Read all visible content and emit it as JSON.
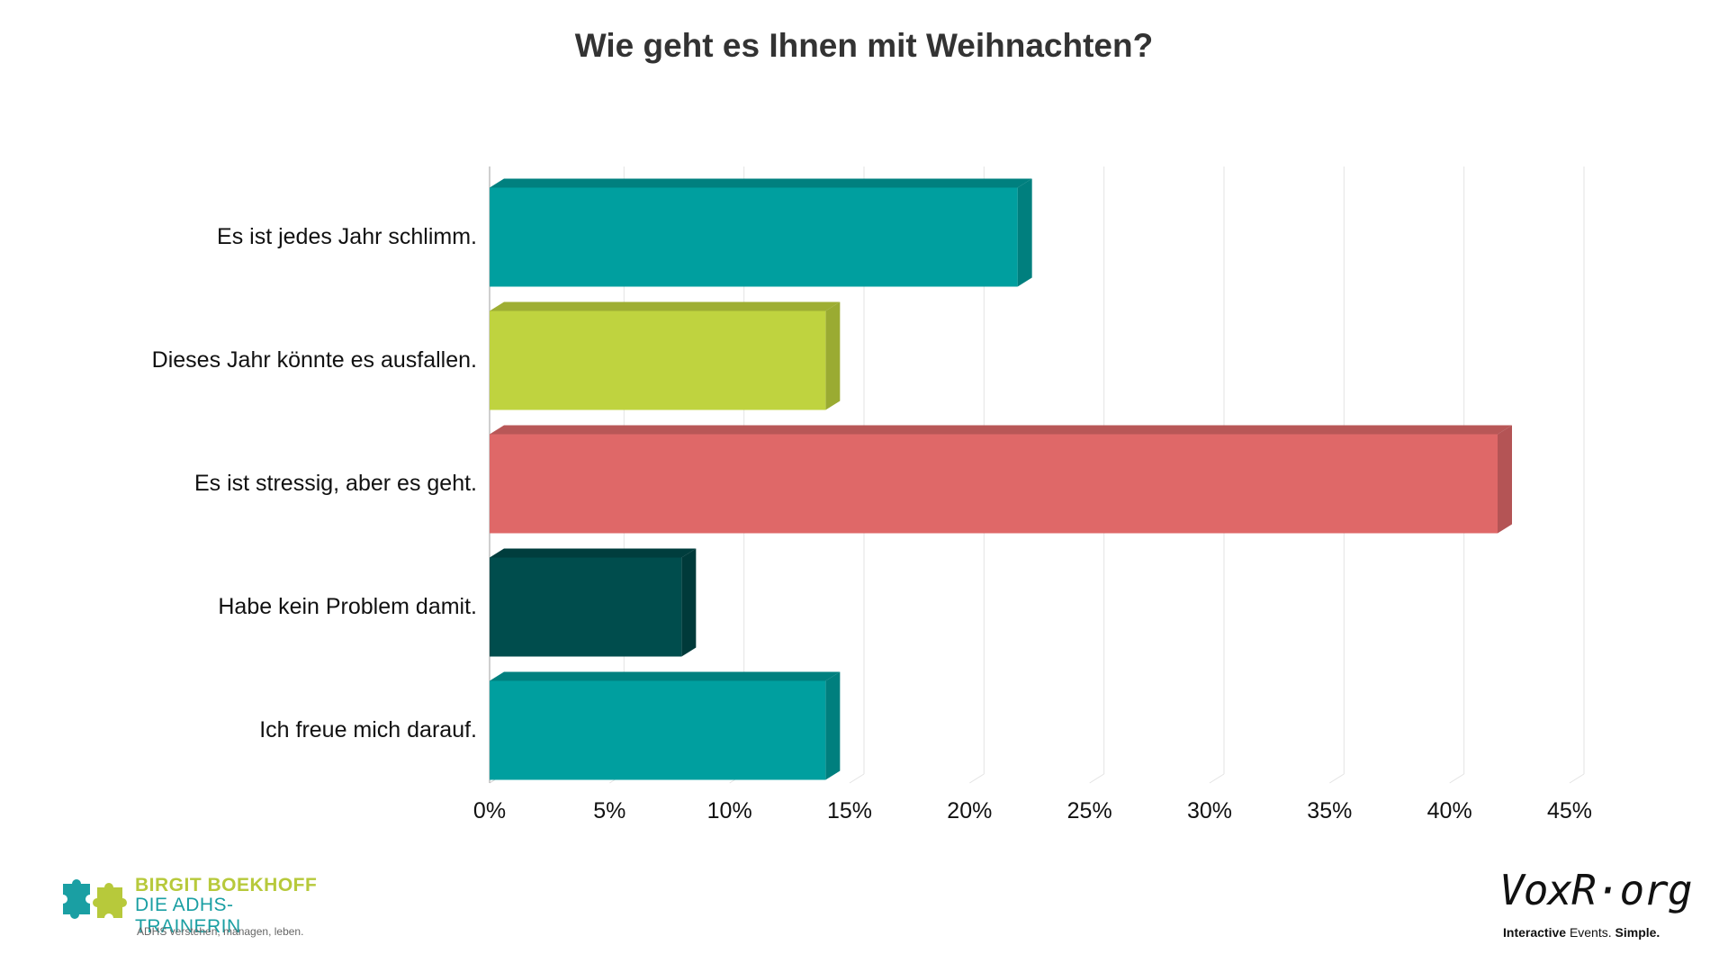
{
  "chart_data": {
    "type": "bar",
    "orientation": "horizontal",
    "title": "Wie geht es Ihnen mit Weihnachten?",
    "categories": [
      "Es ist jedes Jahr schlimm.",
      "Dieses Jahr könnte es ausfallen.",
      "Es ist stressig, aber es geht.",
      "Habe kein Problem damit.",
      "Ich freue mich darauf."
    ],
    "values": [
      22,
      14,
      42,
      8,
      14
    ],
    "colors": [
      "#009f9f",
      "#bfd33f",
      "#df6868",
      "#004d4d",
      "#009f9f"
    ],
    "side_colors": [
      "#007f7e",
      "#9aab32",
      "#b45455",
      "#003a3a",
      "#007f7e"
    ],
    "top_colors": [
      "#00807f",
      "#9eae33",
      "#b85757",
      "#003d3d",
      "#00807f"
    ],
    "xlim": [
      0,
      45
    ],
    "xticks": [
      0,
      5,
      10,
      15,
      20,
      25,
      30,
      35,
      40,
      45
    ],
    "xtick_labels": [
      "0%",
      "5%",
      "10%",
      "15%",
      "20%",
      "25%",
      "30%",
      "35%",
      "40%",
      "45%"
    ],
    "xlabel": "",
    "ylabel": "",
    "grid": true
  },
  "branding": {
    "left": {
      "name": "BIRGIT BOEKHOFF",
      "subtitle": "DIE ADHS-TRAINERIN",
      "tagline": "ADHS verstehen, managen, leben."
    },
    "right": {
      "name": "VoxR·org",
      "tagline_part1": "Interactive",
      "tagline_part2": "Events.",
      "tagline_part3": "Simple."
    }
  }
}
